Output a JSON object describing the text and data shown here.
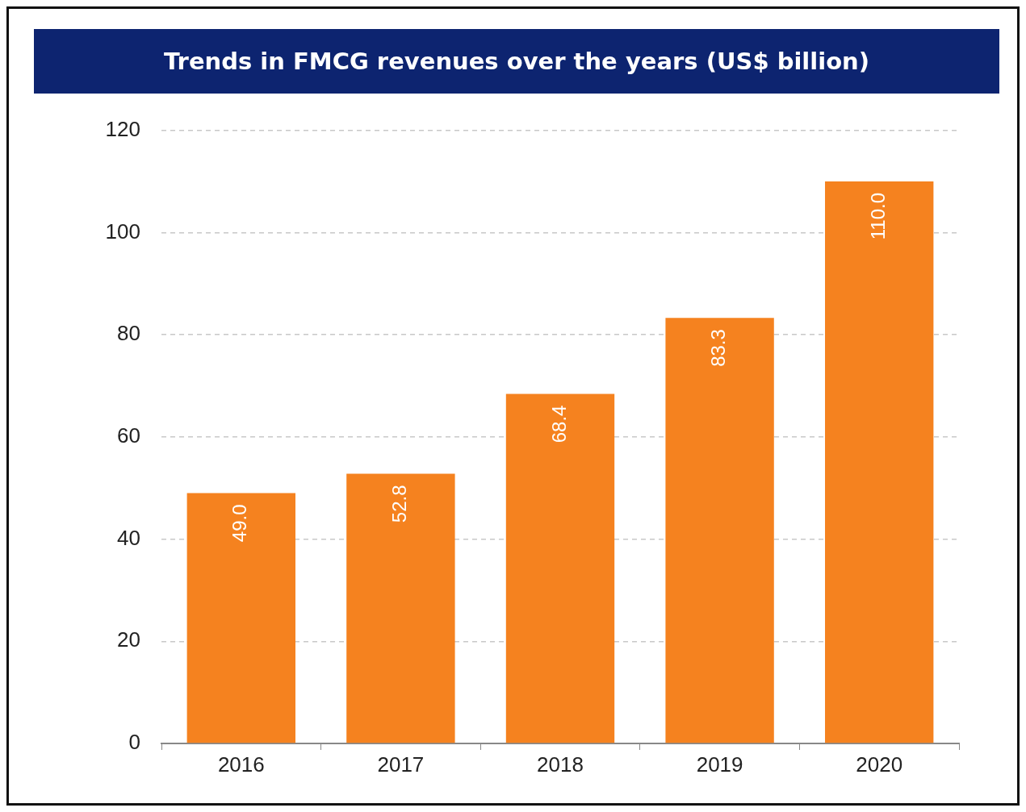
{
  "chart_data": {
    "type": "bar",
    "title": "Trends in FMCG revenues over the years (US$ billion)",
    "categories": [
      "2016",
      "2017",
      "2018",
      "2019",
      "2020"
    ],
    "values": [
      49.0,
      52.8,
      68.4,
      83.3,
      110.0
    ],
    "value_labels": [
      "49.0",
      "52.8",
      "68.4",
      "83.3",
      "110.0"
    ],
    "color": "#f5821f",
    "ylim": [
      0,
      120
    ],
    "yticks": [
      0,
      20,
      40,
      60,
      80,
      100,
      120
    ],
    "grid": "y",
    "legend": false
  }
}
